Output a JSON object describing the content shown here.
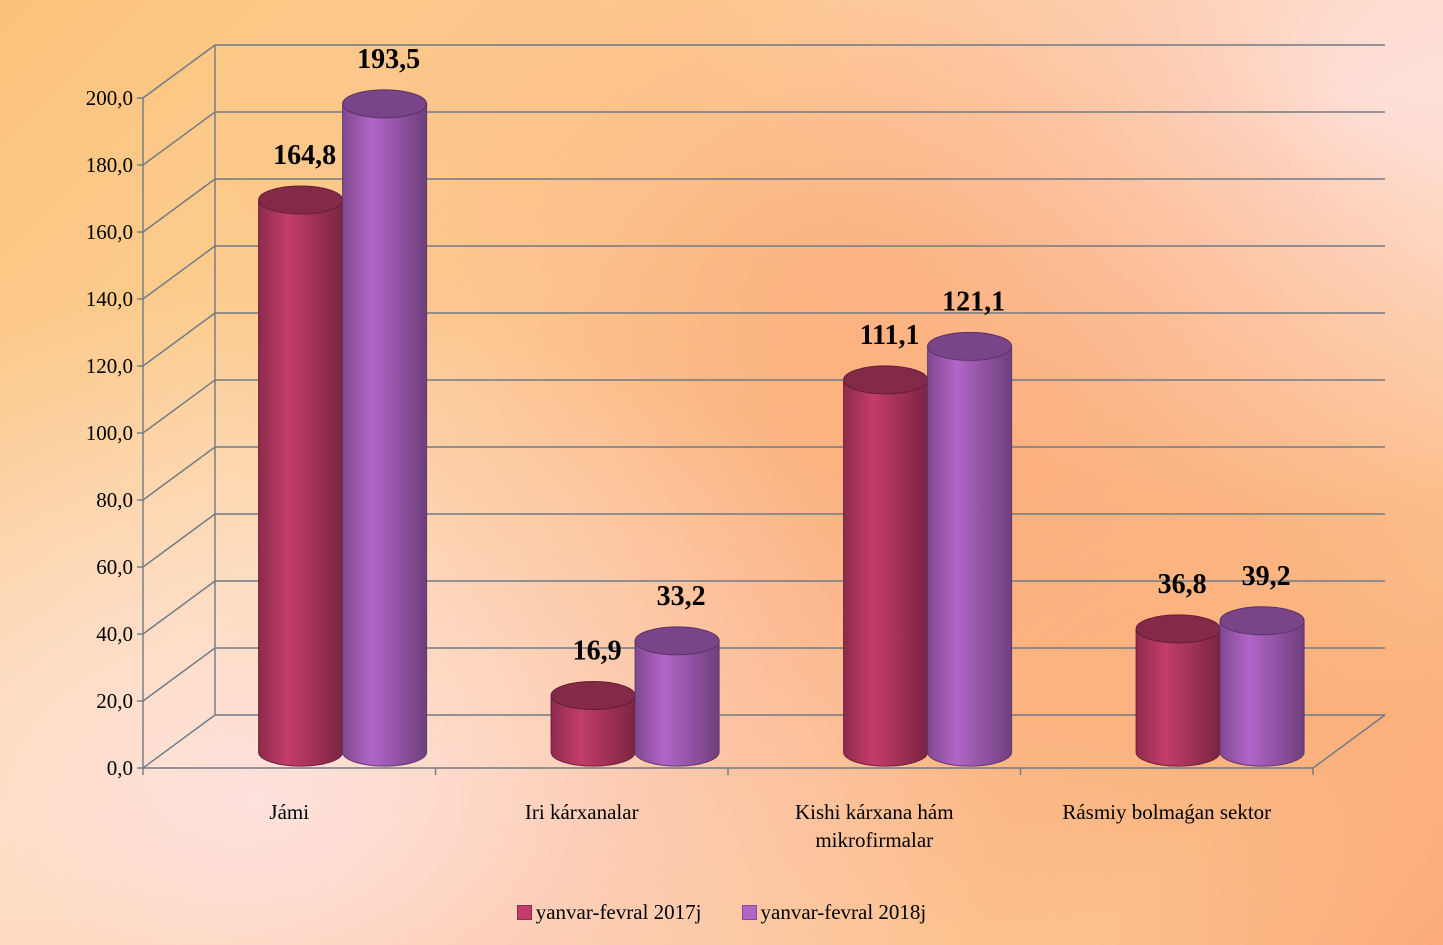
{
  "chart_data": {
    "type": "bar",
    "title": "",
    "xlabel": "",
    "ylabel": "",
    "ylim": [
      0,
      200
    ],
    "ytick_step": 20,
    "ytick_labels": [
      "0,0",
      "20,0",
      "40,0",
      "60,0",
      "80,0",
      "100,0",
      "120,0",
      "140,0",
      "160,0",
      "180,0",
      "200,0"
    ],
    "categories": [
      "Jámi",
      "Iri kárxanalar",
      "Kishi kárxana hám mikrofirmalar",
      "Rásmiy bolmaǵan sektor"
    ],
    "series": [
      {
        "name": "yanvar-fevral 2017j",
        "values": [
          164.8,
          16.9,
          111.1,
          36.8
        ],
        "labels": [
          "164,8",
          "16,9",
          "111,1",
          "36,8"
        ],
        "color": "#c43c6b"
      },
      {
        "name": "yanvar-fevral 2018j",
        "values": [
          193.5,
          33.2,
          121.1,
          39.2
        ],
        "labels": [
          "193,5",
          "33,2",
          "121,1",
          "39,2"
        ],
        "color": "#b265c8"
      }
    ],
    "grid": true,
    "legend_position": "bottom",
    "style": "3d-cylinder"
  }
}
